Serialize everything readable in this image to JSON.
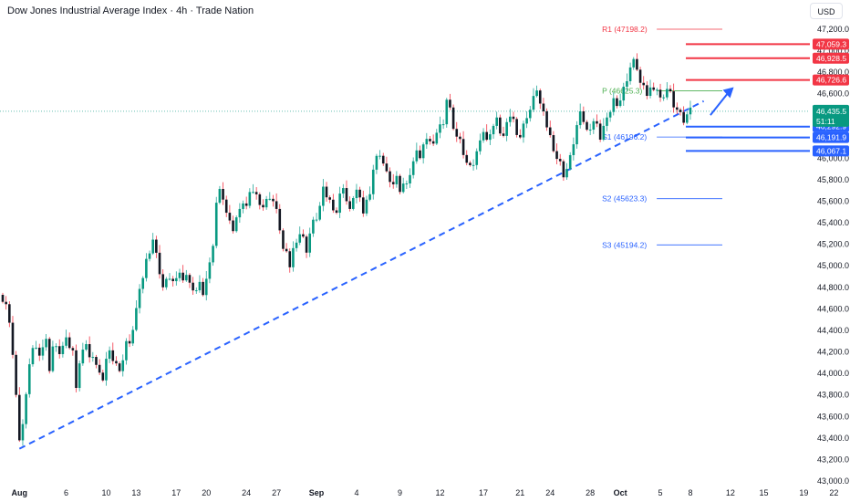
{
  "header": {
    "title": "Dow Jones Industrial Average Index · 4h · Trade Nation",
    "currency": "USD"
  },
  "chart_data": {
    "type": "candlestick",
    "title": "Dow Jones Industrial Average Index · 4h · Trade Nation",
    "ylim": [
      43000,
      47300
    ],
    "y_ticks": [
      {
        "value": 47200,
        "label": "47,200.0"
      },
      {
        "value": 47000,
        "label": "47,000.0"
      },
      {
        "value": 46800,
        "label": "46,800.0"
      },
      {
        "value": 46600,
        "label": "46,600.0"
      },
      {
        "value": 46400,
        "label": "46,400.0"
      },
      {
        "value": 46200,
        "label": "46,200.0"
      },
      {
        "value": 46000,
        "label": "46,000.0"
      },
      {
        "value": 45800,
        "label": "45,800.0"
      },
      {
        "value": 45600,
        "label": "45,600.0"
      },
      {
        "value": 45400,
        "label": "45,400.0"
      },
      {
        "value": 45200,
        "label": "45,200.0"
      },
      {
        "value": 45000,
        "label": "45,000.0"
      },
      {
        "value": 44800,
        "label": "44,800.0"
      },
      {
        "value": 44600,
        "label": "44,600.0"
      },
      {
        "value": 44400,
        "label": "44,400.0"
      },
      {
        "value": 44200,
        "label": "44,200.0"
      },
      {
        "value": 44000,
        "label": "44,000.0"
      },
      {
        "value": 43800,
        "label": "43,800.0"
      },
      {
        "value": 43600,
        "label": "43,600.0"
      },
      {
        "value": 43400,
        "label": "43,400.0"
      },
      {
        "value": 43200,
        "label": "43,200.0"
      },
      {
        "value": 43000,
        "label": "43,000.0"
      }
    ],
    "x_ticks": [
      {
        "label": "Aug",
        "bar": 5,
        "bold": true
      },
      {
        "label": "6",
        "bar": 19
      },
      {
        "label": "10",
        "bar": 31
      },
      {
        "label": "13",
        "bar": 40
      },
      {
        "label": "17",
        "bar": 52
      },
      {
        "label": "20",
        "bar": 61
      },
      {
        "label": "24",
        "bar": 73
      },
      {
        "label": "27",
        "bar": 82
      },
      {
        "label": "Sep",
        "bar": 94,
        "bold": true
      },
      {
        "label": "4",
        "bar": 106
      },
      {
        "label": "9",
        "bar": 119
      },
      {
        "label": "12",
        "bar": 131
      },
      {
        "label": "17",
        "bar": 144
      },
      {
        "label": "21",
        "bar": 155
      },
      {
        "label": "24",
        "bar": 164
      },
      {
        "label": "28",
        "bar": 176
      },
      {
        "label": "Oct",
        "bar": 185,
        "bold": true
      },
      {
        "label": "5",
        "bar": 197
      },
      {
        "label": "8",
        "bar": 206
      },
      {
        "label": "12",
        "bar": 218
      },
      {
        "label": "15",
        "bar": 228
      },
      {
        "label": "19",
        "bar": 240
      },
      {
        "label": "22",
        "bar": 249
      }
    ],
    "anchors": [
      [
        0,
        44700
      ],
      [
        1,
        44650
      ],
      [
        2,
        44450
      ],
      [
        3,
        44200
      ],
      [
        4,
        43800
      ],
      [
        5,
        43350
      ],
      [
        6,
        43550
      ],
      [
        7,
        43800
      ],
      [
        8,
        44050
      ],
      [
        9,
        44250
      ],
      [
        11,
        44200
      ],
      [
        13,
        44300
      ],
      [
        14,
        44050
      ],
      [
        15,
        44250
      ],
      [
        17,
        44200
      ],
      [
        19,
        44300
      ],
      [
        21,
        44200
      ],
      [
        22,
        43900
      ],
      [
        23,
        44100
      ],
      [
        25,
        44300
      ],
      [
        26,
        44150
      ],
      [
        28,
        44100
      ],
      [
        30,
        43900
      ],
      [
        31,
        44150
      ],
      [
        32,
        44200
      ],
      [
        34,
        44100
      ],
      [
        35,
        44000
      ],
      [
        37,
        44300
      ],
      [
        38,
        44250
      ],
      [
        40,
        44600
      ],
      [
        42,
        44900
      ],
      [
        43,
        45050
      ],
      [
        44,
        45150
      ],
      [
        45,
        45250
      ],
      [
        46,
        45100
      ],
      [
        47,
        44950
      ],
      [
        48,
        44800
      ],
      [
        50,
        44900
      ],
      [
        51,
        44850
      ],
      [
        52,
        44850
      ],
      [
        53,
        44950
      ],
      [
        54,
        44850
      ],
      [
        55,
        44950
      ],
      [
        56,
        44850
      ],
      [
        57,
        44750
      ],
      [
        58,
        44800
      ],
      [
        59,
        44850
      ],
      [
        60,
        44700
      ],
      [
        61,
        44900
      ],
      [
        63,
        45150
      ],
      [
        64,
        45600
      ],
      [
        65,
        45700
      ],
      [
        66,
        45650
      ],
      [
        67,
        45500
      ],
      [
        68,
        45400
      ],
      [
        69,
        45350
      ],
      [
        70,
        45450
      ],
      [
        71,
        45500
      ],
      [
        72,
        45600
      ],
      [
        73,
        45550
      ],
      [
        74,
        45650
      ],
      [
        75,
        45700
      ],
      [
        76,
        45650
      ],
      [
        77,
        45600
      ],
      [
        78,
        45550
      ],
      [
        79,
        45600
      ],
      [
        80,
        45650
      ],
      [
        81,
        45600
      ],
      [
        82,
        45500
      ],
      [
        83,
        45350
      ],
      [
        84,
        45150
      ],
      [
        85,
        45100
      ],
      [
        86,
        45000
      ],
      [
        87,
        45150
      ],
      [
        88,
        45250
      ],
      [
        89,
        45300
      ],
      [
        90,
        45250
      ],
      [
        91,
        45150
      ],
      [
        92,
        45300
      ],
      [
        93,
        45400
      ],
      [
        94,
        45450
      ],
      [
        95,
        45550
      ],
      [
        96,
        45700
      ],
      [
        97,
        45650
      ],
      [
        98,
        45600
      ],
      [
        99,
        45550
      ],
      [
        100,
        45500
      ],
      [
        101,
        45650
      ],
      [
        102,
        45750
      ],
      [
        103,
        45600
      ],
      [
        104,
        45500
      ],
      [
        105,
        45650
      ],
      [
        106,
        45700
      ],
      [
        107,
        45600
      ],
      [
        108,
        45500
      ],
      [
        109,
        45600
      ],
      [
        110,
        45700
      ],
      [
        111,
        45900
      ],
      [
        112,
        46000
      ],
      [
        113,
        46050
      ],
      [
        114,
        45950
      ],
      [
        115,
        45850
      ],
      [
        116,
        45800
      ],
      [
        117,
        45750
      ],
      [
        118,
        45800
      ],
      [
        119,
        45700
      ],
      [
        120,
        45750
      ],
      [
        121,
        45800
      ],
      [
        122,
        45850
      ],
      [
        123,
        45950
      ],
      [
        124,
        46100
      ],
      [
        125,
        46000
      ],
      [
        126,
        46100
      ],
      [
        127,
        46200
      ],
      [
        128,
        46150
      ],
      [
        129,
        46100
      ],
      [
        130,
        46250
      ],
      [
        131,
        46300
      ],
      [
        132,
        46350
      ],
      [
        133,
        46550
      ],
      [
        134,
        46450
      ],
      [
        135,
        46300
      ],
      [
        136,
        46200
      ],
      [
        137,
        46150
      ],
      [
        138,
        46050
      ],
      [
        139,
        45950
      ],
      [
        140,
        45900
      ],
      [
        141,
        45950
      ],
      [
        142,
        46050
      ],
      [
        143,
        46200
      ],
      [
        144,
        46250
      ],
      [
        145,
        46150
      ],
      [
        146,
        46250
      ],
      [
        147,
        46300
      ],
      [
        148,
        46350
      ],
      [
        149,
        46250
      ],
      [
        150,
        46200
      ],
      [
        151,
        46300
      ],
      [
        152,
        46400
      ],
      [
        153,
        46350
      ],
      [
        154,
        46250
      ],
      [
        155,
        46200
      ],
      [
        156,
        46300
      ],
      [
        157,
        46400
      ],
      [
        158,
        46450
      ],
      [
        159,
        46550
      ],
      [
        160,
        46650
      ],
      [
        161,
        46500
      ],
      [
        162,
        46400
      ],
      [
        163,
        46300
      ],
      [
        164,
        46200
      ],
      [
        165,
        46100
      ],
      [
        166,
        46000
      ],
      [
        167,
        45950
      ],
      [
        168,
        45850
      ],
      [
        169,
        45900
      ],
      [
        170,
        46000
      ],
      [
        171,
        46150
      ],
      [
        172,
        46300
      ],
      [
        173,
        46400
      ],
      [
        174,
        46350
      ],
      [
        175,
        46250
      ],
      [
        176,
        46300
      ],
      [
        177,
        46350
      ],
      [
        178,
        46300
      ],
      [
        179,
        46200
      ],
      [
        180,
        46300
      ],
      [
        181,
        46350
      ],
      [
        182,
        46450
      ],
      [
        183,
        46550
      ],
      [
        184,
        46450
      ],
      [
        185,
        46550
      ],
      [
        186,
        46650
      ],
      [
        187,
        46750
      ],
      [
        188,
        46850
      ],
      [
        189,
        46900
      ],
      [
        190,
        46850
      ],
      [
        191,
        46700
      ],
      [
        192,
        46650
      ],
      [
        193,
        46600
      ],
      [
        194,
        46650
      ],
      [
        195,
        46600
      ],
      [
        196,
        46650
      ],
      [
        197,
        46550
      ],
      [
        198,
        46600
      ],
      [
        199,
        46650
      ],
      [
        200,
        46600
      ],
      [
        201,
        46500
      ],
      [
        202,
        46450
      ],
      [
        203,
        46400
      ],
      [
        204,
        46350
      ],
      [
        205,
        46400
      ],
      [
        206,
        46435
      ]
    ],
    "trendline": {
      "start": {
        "bar": 5,
        "value": 43300
      },
      "end": {
        "bar": 210,
        "value": 46530
      },
      "color": "#2962ff"
    },
    "arrow": {
      "from": {
        "bar": 212,
        "value": 46400
      },
      "to": {
        "bar": 219,
        "value": 46660
      },
      "color": "#2962ff"
    },
    "pivots": [
      {
        "label": "R1 (47198.2)",
        "value": 47198.2,
        "color": "#f23645",
        "start_bar": 185
      },
      {
        "label": "P (46625.3)",
        "value": 46625.3,
        "color": "#4caf50",
        "start_bar": 185
      },
      {
        "label": "S1 (46196.2)",
        "value": 46196.2,
        "color": "#2962ff",
        "start_bar": 185
      },
      {
        "label": "S2 (45623.3)",
        "value": 45623.3,
        "color": "#2962ff",
        "start_bar": 185
      },
      {
        "label": "S3 (45194.2)",
        "value": 45194.2,
        "color": "#2962ff",
        "start_bar": 185
      }
    ],
    "zones": [
      {
        "value": 47059.3,
        "color": "#f23645"
      },
      {
        "value": 46928.5,
        "color": "#f23645"
      },
      {
        "value": 46726.6,
        "color": "#f23645"
      },
      {
        "value": 46292.9,
        "color": "#2962ff"
      },
      {
        "value": 46191.9,
        "color": "#2962ff"
      },
      {
        "value": 46067.1,
        "color": "#2962ff"
      }
    ],
    "price_tags": [
      {
        "label": "47,059.3",
        "value": 47059.3,
        "color": "#f23645"
      },
      {
        "label": "46,928.5",
        "value": 46928.5,
        "color": "#f23645"
      },
      {
        "label": "46,726.6",
        "value": 46726.6,
        "color": "#f23645"
      },
      {
        "label": "46,292.9",
        "value": 46292.9,
        "color": "#2962ff"
      },
      {
        "label": "46,191.9",
        "value": 46191.9,
        "color": "#2962ff"
      },
      {
        "label": "46,067.1",
        "value": 46067.1,
        "color": "#2962ff"
      }
    ],
    "current_price": {
      "label": "46,435.5",
      "countdown": "51:11",
      "value": 46435.5,
      "color": "#089981"
    },
    "colors": {
      "up": "#089981",
      "down": "#131722",
      "wick_up": "#26a69a",
      "wick_down": "#f23645"
    }
  }
}
